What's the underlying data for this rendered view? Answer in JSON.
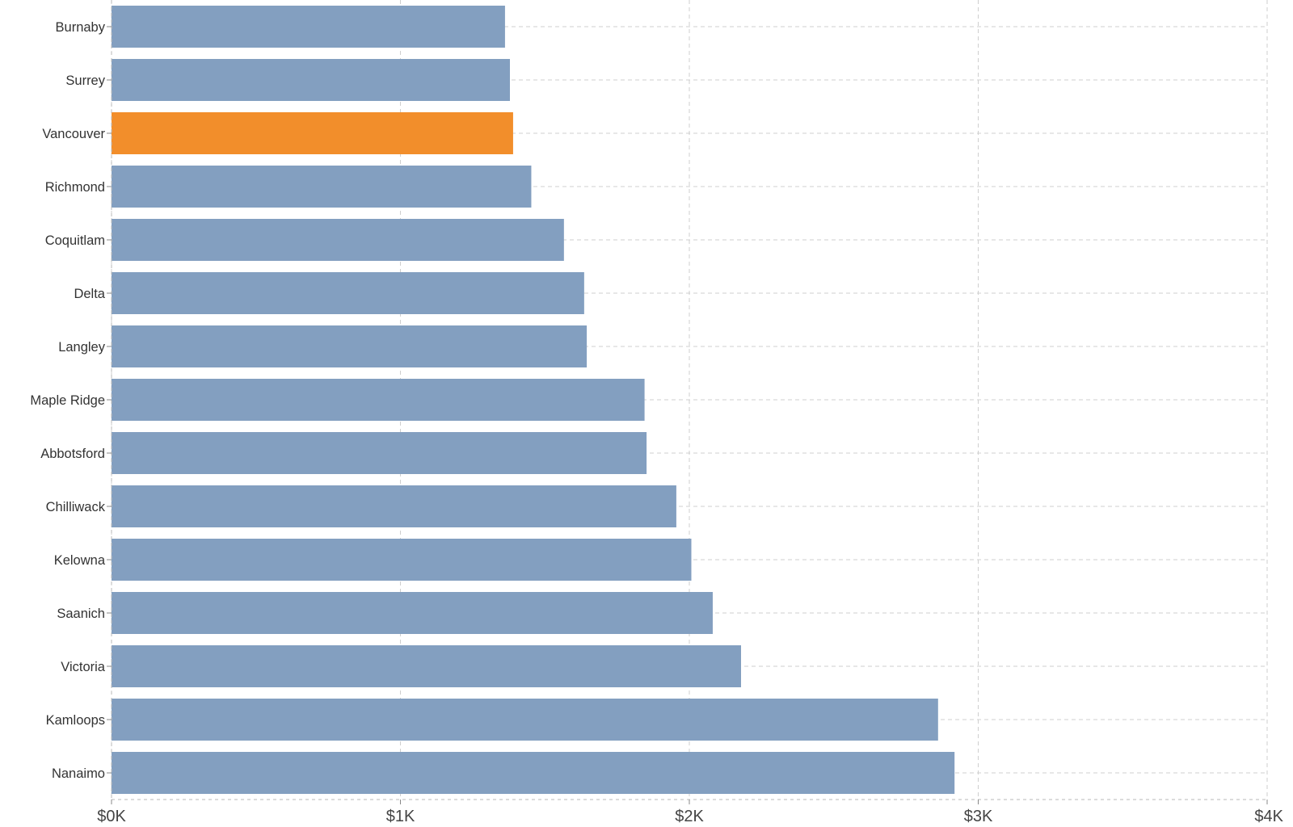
{
  "chart_data": {
    "type": "bar",
    "orientation": "horizontal",
    "categories": [
      "Burnaby",
      "Surrey",
      "Vancouver",
      "Richmond",
      "Coquitlam",
      "Delta",
      "Langley",
      "Maple Ridge",
      "Abbotsford",
      "Chilliwack",
      "Kelowna",
      "Saanich",
      "Victoria",
      "Kamloops",
      "Nanaimo"
    ],
    "values": [
      1362,
      1379,
      1390,
      1453,
      1566,
      1636,
      1645,
      1845,
      1852,
      1955,
      2007,
      2081,
      2179,
      2861,
      2918
    ],
    "highlight": "Vancouver",
    "colors": {
      "bar": "#839fc0",
      "highlight": "#f28e2b",
      "grid": "#cfcfcf"
    },
    "xlim": [
      0,
      4000
    ],
    "x_ticks": [
      0,
      1000,
      2000,
      3000,
      4000
    ],
    "x_tick_labels": [
      "$0K",
      "$1K",
      "$2K",
      "$3K",
      "$4K"
    ],
    "grid": true,
    "legend": "none",
    "title": "",
    "xlabel": "",
    "ylabel": ""
  }
}
